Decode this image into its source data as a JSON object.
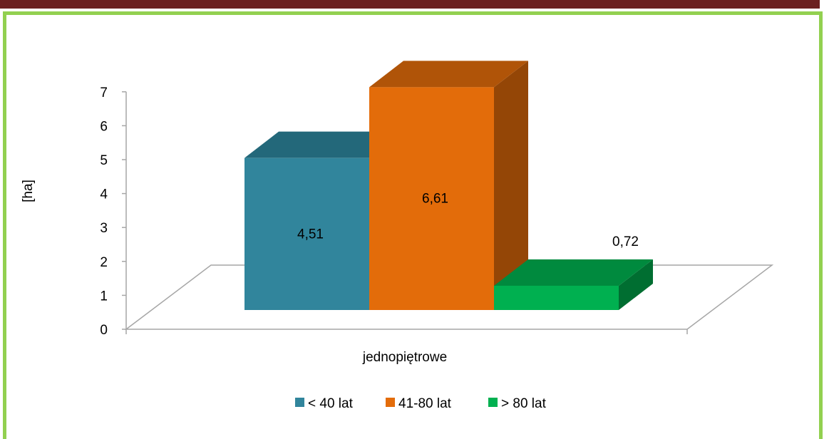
{
  "chart_data": {
    "type": "bar",
    "categories": [
      "jednopiętrowe"
    ],
    "series": [
      {
        "name": "< 40 lat",
        "values": [
          4.51
        ],
        "label": "4,51",
        "colors": {
          "front": "#31859c",
          "top": "#23687a",
          "side": "#1c5566"
        }
      },
      {
        "name": "41-80 lat",
        "values": [
          6.61
        ],
        "label": "6,61",
        "colors": {
          "front": "#e36c0a",
          "top": "#b05408",
          "side": "#944606"
        }
      },
      {
        "name": "> 80 lat",
        "values": [
          0.72
        ],
        "label": "0,72",
        "colors": {
          "front": "#00b050",
          "top": "#008a3e",
          "side": "#006e31"
        }
      }
    ],
    "ylabel": "[ha]",
    "xlabel": "",
    "ylim": [
      0,
      7
    ],
    "yticks": [
      "0",
      "1",
      "2",
      "3",
      "4",
      "5",
      "6",
      "7"
    ],
    "legend_position": "bottom",
    "grid": false
  },
  "colors": {
    "frame_border": "#92d050",
    "top_bar": "#6b2020",
    "floor_line": "#a6a6a6"
  }
}
